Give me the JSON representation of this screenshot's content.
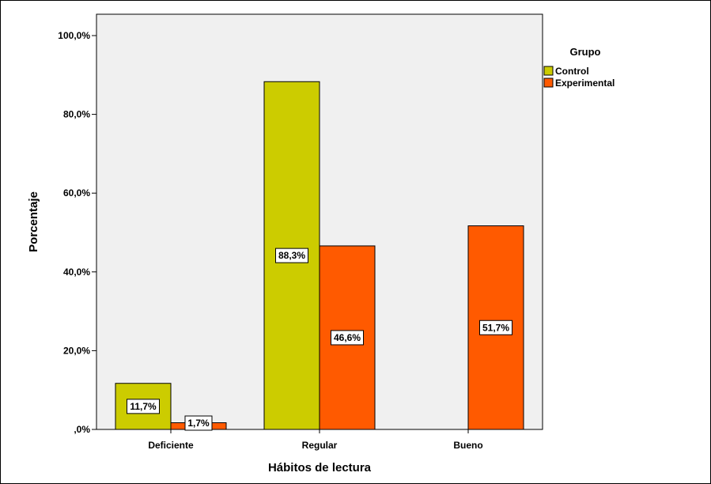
{
  "chart_data": {
    "type": "bar",
    "xlabel": "Hábitos de lectura",
    "ylabel": "Porcentaje",
    "categories": [
      "Deficiente",
      "Regular",
      "Bueno"
    ],
    "series": [
      {
        "name": "Control",
        "values": [
          11.7,
          88.3,
          0.0
        ],
        "labels": [
          "11,7%",
          "88,3%",
          ""
        ],
        "color": "#cccc00"
      },
      {
        "name": "Experimental",
        "values": [
          1.7,
          46.6,
          51.7
        ],
        "labels": [
          "1,7%",
          "46,6%",
          "51,7%"
        ],
        "color": "#ff5a00"
      }
    ],
    "ylim": [
      0,
      100
    ],
    "yticks": [
      0,
      20,
      40,
      60,
      80,
      100
    ],
    "ytick_labels": [
      ",0%",
      "20,0%",
      "40,0%",
      "60,0%",
      "80,0%",
      "100,0%"
    ],
    "legend": {
      "title": "Grupo",
      "position": "top-right"
    },
    "plot_background": "#f0f0f0",
    "grid": false
  }
}
